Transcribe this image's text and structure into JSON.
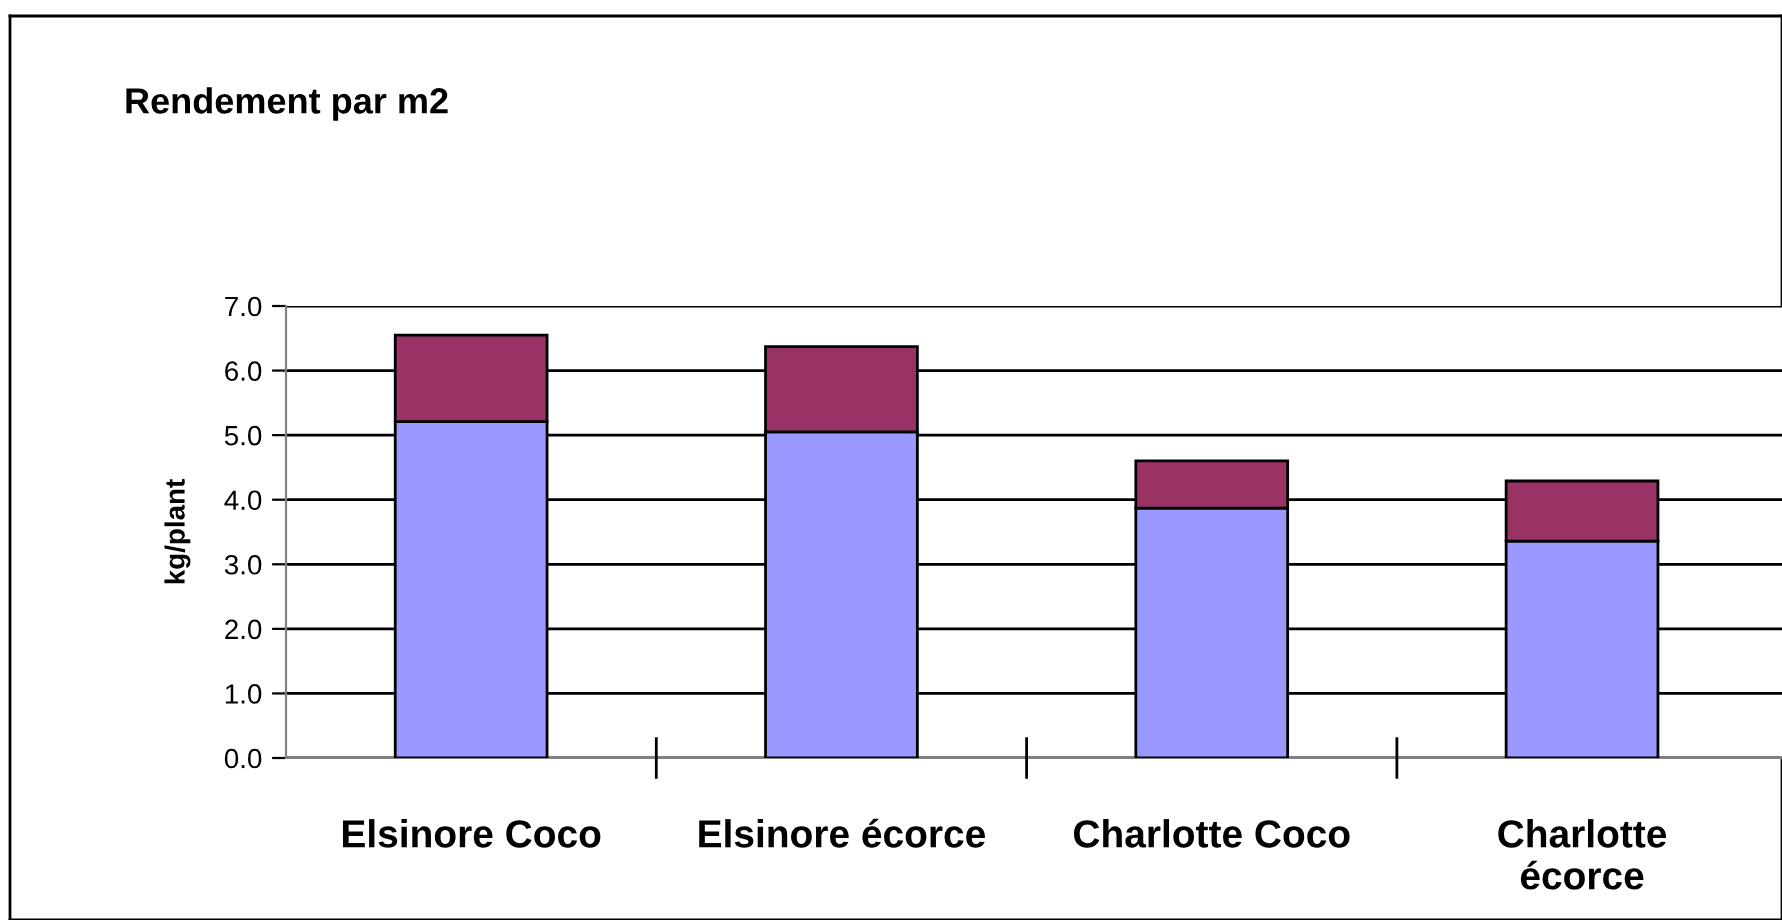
{
  "chart_data": {
    "type": "bar",
    "title": "Rendement par m2",
    "ylabel": "kg/plant",
    "categories": [
      "Elsinore Coco",
      "Elsinore écorce",
      "Charlotte Coco",
      "Charlotte\nécorce"
    ],
    "stacked": true,
    "series": [
      {
        "color": "#9999ff",
        "values": [
          5.21,
          5.05,
          3.87,
          3.36
        ]
      },
      {
        "color": "#993366",
        "values": [
          1.34,
          1.32,
          0.73,
          0.93
        ]
      }
    ],
    "ylim": [
      0,
      7
    ],
    "yticks": [
      {
        "value": 0,
        "label": "0.0"
      },
      {
        "value": 1,
        "label": "1.0"
      },
      {
        "value": 2,
        "label": "2.0"
      },
      {
        "value": 3,
        "label": "3.0"
      },
      {
        "value": 4,
        "label": "4.0"
      },
      {
        "value": 5,
        "label": "5.0"
      },
      {
        "value": 6,
        "label": "6.0"
      },
      {
        "value": 7,
        "label": "7.0"
      }
    ],
    "grid": "y",
    "legend": false
  }
}
